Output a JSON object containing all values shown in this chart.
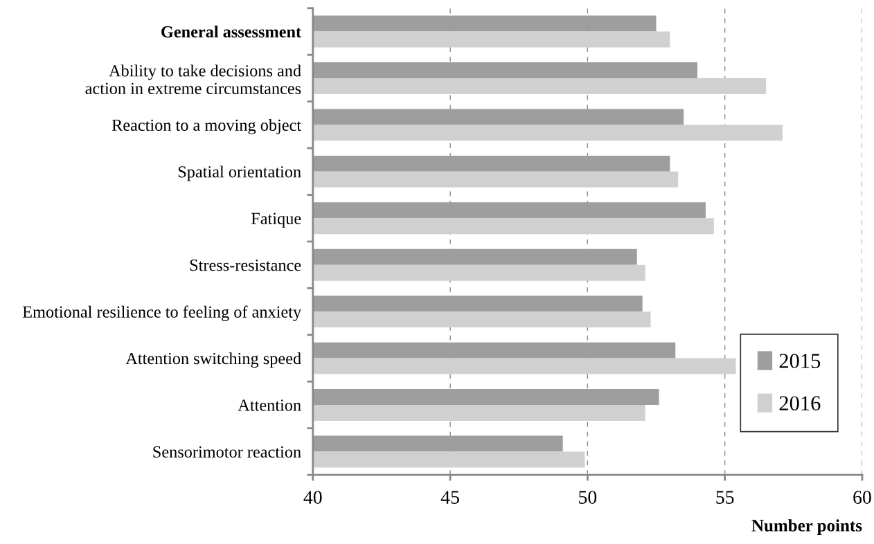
{
  "chart_data": {
    "type": "bar",
    "orientation": "horizontal",
    "xlabel": "Number points",
    "categories": [
      "General assessment",
      "Ability to take decisions and\naction in extreme circumstances",
      "Reaction to a moving object",
      "Spatial orientation",
      "Fatique",
      "Stress-resistance",
      "Emotional resilience to feeling of anxiety",
      "Attention switching speed",
      "Attention",
      "Sensorimotor reaction"
    ],
    "series": [
      {
        "name": "2015",
        "color": "#9e9e9e",
        "values": [
          52.5,
          54.0,
          53.5,
          53.0,
          54.3,
          51.8,
          52.0,
          53.2,
          52.6,
          49.1
        ]
      },
      {
        "name": "2016",
        "color": "#d0d0d0",
        "values": [
          53.0,
          56.5,
          57.1,
          53.3,
          54.6,
          52.1,
          52.3,
          55.4,
          52.1,
          49.9
        ]
      }
    ],
    "xlim": [
      40,
      60
    ],
    "xticks": [
      40,
      45,
      50,
      55,
      60
    ],
    "grid": "x",
    "legend": "bottom right"
  }
}
